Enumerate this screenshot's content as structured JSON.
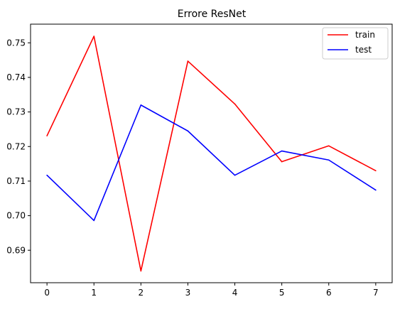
{
  "chart_data": {
    "type": "line",
    "title": "Errore ResNet",
    "xlabel": "",
    "ylabel": "",
    "x": [
      0,
      1,
      2,
      3,
      4,
      5,
      6,
      7
    ],
    "xticks": [
      "0",
      "1",
      "2",
      "3",
      "4",
      "5",
      "6",
      "7"
    ],
    "yticks": [
      "0.69",
      "0.70",
      "0.71",
      "0.72",
      "0.73",
      "0.74",
      "0.75"
    ],
    "xlim": [
      -0.35,
      7.35
    ],
    "ylim": [
      0.6806,
      0.7554
    ],
    "grid": false,
    "legend_position": "top-right",
    "series": [
      {
        "name": "train",
        "color": "#ff0000",
        "values": [
          0.7231,
          0.7519,
          0.684,
          0.7447,
          0.7323,
          0.7156,
          0.7202,
          0.713
        ]
      },
      {
        "name": "test",
        "color": "#0000ff",
        "values": [
          0.7117,
          0.6986,
          0.732,
          0.7245,
          0.7117,
          0.7187,
          0.7161,
          0.7074
        ]
      }
    ]
  }
}
